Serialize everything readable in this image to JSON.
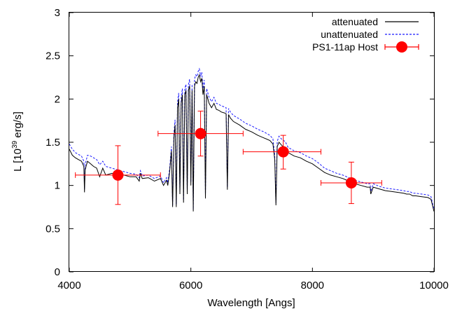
{
  "chart_data": {
    "type": "line",
    "title": "",
    "xlabel": "Wavelength [Angs]",
    "ylabel": {
      "main": "L  [10",
      "exponent": "39",
      "unit": " erg/s]"
    },
    "xlim": [
      4000,
      10000
    ],
    "ylim": [
      0,
      3
    ],
    "xticks": [
      4000,
      6000,
      8000,
      10000
    ],
    "xtick_labels": [
      "4000",
      "6000",
      "8000",
      "10000"
    ],
    "yticks": [
      0,
      0.5,
      1,
      1.5,
      2,
      2.5,
      3
    ],
    "ytick_labels": [
      "0",
      "0.5",
      "1",
      "1.5",
      "2",
      "2.5",
      "3"
    ],
    "grid": false,
    "legend_position": "top-right",
    "series": [
      {
        "name": "attenuated",
        "style": "solid",
        "color": "#000000",
        "x": [
          4000,
          4050,
          4100,
          4150,
          4200,
          4240,
          4250,
          4260,
          4300,
          4350,
          4400,
          4450,
          4500,
          4550,
          4600,
          4700,
          4800,
          4900,
          5000,
          5100,
          5150,
          5170,
          5200,
          5300,
          5400,
          5500,
          5550,
          5600,
          5620,
          5650,
          5680,
          5700,
          5720,
          5740,
          5760,
          5780,
          5800,
          5820,
          5840,
          5860,
          5880,
          5900,
          5920,
          5940,
          5960,
          5980,
          6000,
          6020,
          6040,
          6060,
          6080,
          6100,
          6120,
          6140,
          6160,
          6180,
          6200,
          6220,
          6240,
          6260,
          6280,
          6300,
          6340,
          6380,
          6420,
          6460,
          6500,
          6550,
          6580,
          6600,
          6620,
          6650,
          6700,
          6800,
          6900,
          7000,
          7100,
          7200,
          7300,
          7350,
          7380,
          7400,
          7420,
          7450,
          7500,
          7550,
          7600,
          7700,
          7800,
          7900,
          8000,
          8100,
          8200,
          8300,
          8400,
          8500,
          8600,
          8700,
          8800,
          8900,
          8950,
          8960,
          9000,
          9100,
          9200,
          9300,
          9400,
          9500,
          9550,
          9600,
          9650,
          9700,
          9800,
          9900,
          9950,
          10000
        ],
        "y": [
          1.42,
          1.35,
          1.32,
          1.3,
          1.28,
          1.22,
          0.92,
          1.18,
          1.28,
          1.25,
          1.22,
          1.2,
          1.1,
          1.2,
          1.12,
          1.14,
          1.12,
          1.12,
          1.1,
          1.1,
          1.05,
          1.14,
          1.08,
          1.09,
          1.05,
          1.08,
          1.0,
          1.06,
          1.0,
          1.15,
          1.4,
          0.75,
          1.55,
          1.7,
          0.75,
          1.9,
          2.0,
          0.9,
          1.95,
          2.05,
          0.8,
          2.05,
          2.1,
          0.9,
          2.1,
          2.15,
          1.0,
          2.1,
          0.7,
          2.15,
          2.2,
          2.18,
          2.25,
          2.28,
          2.2,
          2.24,
          2.05,
          2.15,
          0.85,
          2.05,
          2.0,
          1.95,
          1.9,
          1.95,
          1.88,
          1.87,
          1.85,
          1.84,
          1.83,
          0.95,
          1.82,
          1.78,
          1.74,
          1.7,
          1.65,
          1.62,
          1.58,
          1.55,
          1.52,
          1.48,
          1.3,
          0.77,
          1.45,
          1.5,
          1.46,
          1.44,
          1.38,
          1.34,
          1.32,
          1.28,
          1.25,
          1.2,
          1.15,
          1.12,
          1.1,
          1.08,
          1.05,
          1.02,
          1.0,
          0.98,
          0.98,
          0.9,
          0.98,
          0.96,
          0.94,
          0.93,
          0.92,
          0.91,
          0.9,
          0.9,
          0.88,
          0.88,
          0.87,
          0.86,
          0.84,
          0.7
        ]
      },
      {
        "name": "unattenuated",
        "style": "dashed",
        "color": "#1a1aff",
        "x": [
          4000,
          4050,
          4100,
          4150,
          4200,
          4240,
          4250,
          4260,
          4300,
          4350,
          4400,
          4450,
          4500,
          4550,
          4600,
          4700,
          4800,
          4900,
          5000,
          5100,
          5150,
          5170,
          5200,
          5300,
          5400,
          5500,
          5550,
          5600,
          5620,
          5650,
          5680,
          5700,
          5720,
          5740,
          5760,
          5780,
          5800,
          5820,
          5840,
          5860,
          5880,
          5900,
          5920,
          5940,
          5960,
          5980,
          6000,
          6020,
          6040,
          6060,
          6080,
          6100,
          6120,
          6140,
          6160,
          6180,
          6200,
          6220,
          6240,
          6260,
          6280,
          6300,
          6340,
          6380,
          6420,
          6460,
          6500,
          6550,
          6580,
          6600,
          6620,
          6650,
          6700,
          6800,
          6900,
          7000,
          7100,
          7200,
          7300,
          7350,
          7380,
          7400,
          7420,
          7450,
          7500,
          7550,
          7600,
          7700,
          7800,
          7900,
          8000,
          8100,
          8200,
          8300,
          8400,
          8500,
          8600,
          8700,
          8800,
          8900,
          8950,
          8960,
          9000,
          9100,
          9200,
          9300,
          9400,
          9500,
          9550,
          9600,
          9650,
          9700,
          9800,
          9900,
          9950,
          10000
        ],
        "y": [
          1.48,
          1.42,
          1.38,
          1.36,
          1.34,
          1.28,
          0.96,
          1.24,
          1.35,
          1.34,
          1.32,
          1.3,
          1.24,
          1.28,
          1.22,
          1.2,
          1.18,
          1.16,
          1.14,
          1.13,
          1.09,
          1.17,
          1.11,
          1.12,
          1.08,
          1.11,
          1.03,
          1.09,
          1.03,
          1.19,
          1.45,
          0.77,
          1.6,
          1.76,
          0.78,
          1.96,
          2.07,
          0.93,
          2.02,
          2.12,
          0.83,
          2.12,
          2.17,
          0.93,
          2.17,
          2.23,
          1.04,
          2.17,
          0.72,
          2.23,
          2.28,
          2.26,
          2.32,
          2.35,
          2.27,
          2.31,
          2.12,
          2.22,
          0.88,
          2.12,
          2.07,
          2.02,
          1.97,
          2.02,
          1.95,
          1.94,
          1.92,
          1.91,
          1.9,
          0.98,
          1.89,
          1.85,
          1.81,
          1.77,
          1.72,
          1.69,
          1.65,
          1.62,
          1.58,
          1.54,
          1.35,
          0.8,
          1.51,
          1.57,
          1.53,
          1.51,
          1.44,
          1.4,
          1.38,
          1.34,
          1.31,
          1.26,
          1.2,
          1.17,
          1.14,
          1.12,
          1.09,
          1.06,
          1.04,
          1.02,
          1.02,
          0.93,
          1.02,
          0.99,
          0.97,
          0.96,
          0.95,
          0.94,
          0.93,
          0.93,
          0.91,
          0.91,
          0.9,
          0.89,
          0.87,
          0.72
        ]
      },
      {
        "name": "PS1-11ap Host",
        "style": "points",
        "color": "#ff0000",
        "points": [
          {
            "x": 4800,
            "y": 1.12,
            "xerr": [
              700,
              700
            ],
            "yerr": [
              0.34,
              0.34
            ]
          },
          {
            "x": 6160,
            "y": 1.6,
            "xerr": [
              700,
              700
            ],
            "yerr": [
              0.26,
              0.26
            ]
          },
          {
            "x": 7520,
            "y": 1.39,
            "xerr": [
              660,
              620
            ],
            "yerr": [
              0.2,
              0.19
            ]
          },
          {
            "x": 8640,
            "y": 1.03,
            "xerr": [
              500,
              500
            ],
            "yerr": [
              0.24,
              0.24
            ]
          }
        ]
      }
    ]
  }
}
